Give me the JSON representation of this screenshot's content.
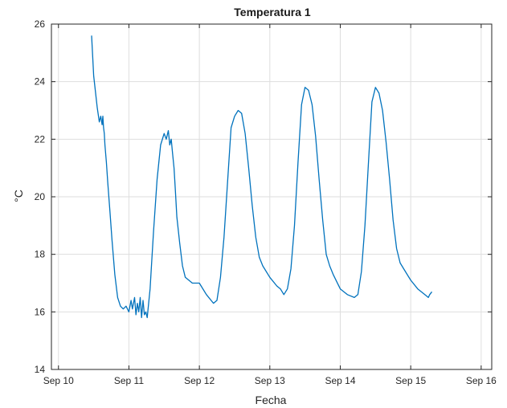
{
  "chart_data": {
    "type": "line",
    "title": "Temperatura 1",
    "xlabel": "Fecha",
    "ylabel": "°C",
    "x_ticks": [
      {
        "value": 10,
        "label": "Sep 10"
      },
      {
        "value": 11,
        "label": "Sep 11"
      },
      {
        "value": 12,
        "label": "Sep 12"
      },
      {
        "value": 13,
        "label": "Sep 13"
      },
      {
        "value": 14,
        "label": "Sep 14"
      },
      {
        "value": 15,
        "label": "Sep 15"
      },
      {
        "value": 16,
        "label": "Sep 16"
      }
    ],
    "y_ticks": [
      14,
      16,
      18,
      20,
      22,
      24,
      26
    ],
    "xlim": [
      9.9,
      16.15
    ],
    "ylim": [
      14,
      26
    ],
    "grid": true,
    "line_color": "#0072BD",
    "series": [
      {
        "x": [
          10.47,
          10.5,
          10.55,
          10.58,
          10.6,
          10.62,
          10.63,
          10.64,
          10.65,
          10.66,
          10.68,
          10.7,
          10.73,
          10.76,
          10.8,
          10.84,
          10.88,
          10.92,
          10.96,
          11.0,
          11.03,
          11.05,
          11.08,
          11.1,
          11.12,
          11.14,
          11.16,
          11.18,
          11.2,
          11.22,
          11.24,
          11.26,
          11.28,
          11.3,
          11.32,
          11.35,
          11.4,
          11.45,
          11.5,
          11.53,
          11.56,
          11.58,
          11.6,
          11.62,
          11.64,
          11.66,
          11.68,
          11.72,
          11.76,
          11.8,
          11.85,
          11.9,
          11.95,
          12.0,
          12.1,
          12.2,
          12.25,
          12.3,
          12.35,
          12.4,
          12.45,
          12.5,
          12.55,
          12.6,
          12.65,
          12.7,
          12.75,
          12.8,
          12.85,
          12.9,
          13.0,
          13.1,
          13.15,
          13.2,
          13.25,
          13.3,
          13.35,
          13.4,
          13.45,
          13.5,
          13.55,
          13.6,
          13.65,
          13.7,
          13.75,
          13.8,
          13.85,
          13.9,
          14.0,
          14.1,
          14.2,
          14.25,
          14.3,
          14.35,
          14.4,
          14.45,
          14.5,
          14.55,
          14.6,
          14.65,
          14.7,
          14.75,
          14.8,
          14.85,
          14.9,
          15.0,
          15.1,
          15.2,
          15.25,
          15.27,
          15.3
        ],
        "y": [
          25.6,
          24.2,
          23.1,
          22.6,
          22.8,
          22.5,
          22.8,
          22.4,
          22.2,
          21.8,
          21.2,
          20.5,
          19.5,
          18.5,
          17.3,
          16.5,
          16.2,
          16.1,
          16.2,
          16.0,
          16.4,
          16.1,
          16.5,
          15.9,
          16.3,
          16.0,
          16.5,
          15.8,
          16.4,
          15.9,
          16.0,
          15.8,
          16.3,
          16.8,
          17.6,
          18.8,
          20.6,
          21.8,
          22.2,
          22.0,
          22.3,
          21.8,
          22.0,
          21.5,
          21.0,
          20.2,
          19.3,
          18.4,
          17.6,
          17.2,
          17.1,
          17.0,
          17.0,
          17.0,
          16.6,
          16.3,
          16.4,
          17.2,
          18.6,
          20.5,
          22.4,
          22.8,
          23.0,
          22.9,
          22.2,
          21.0,
          19.7,
          18.6,
          17.9,
          17.6,
          17.2,
          16.9,
          16.8,
          16.6,
          16.8,
          17.5,
          19.0,
          21.2,
          23.2,
          23.8,
          23.7,
          23.2,
          22.1,
          20.6,
          19.2,
          18.0,
          17.6,
          17.3,
          16.8,
          16.6,
          16.5,
          16.6,
          17.4,
          19.0,
          21.2,
          23.3,
          23.8,
          23.6,
          23.0,
          21.9,
          20.6,
          19.2,
          18.2,
          17.7,
          17.5,
          17.1,
          16.8,
          16.6,
          16.5,
          16.6,
          16.7
        ]
      }
    ]
  }
}
